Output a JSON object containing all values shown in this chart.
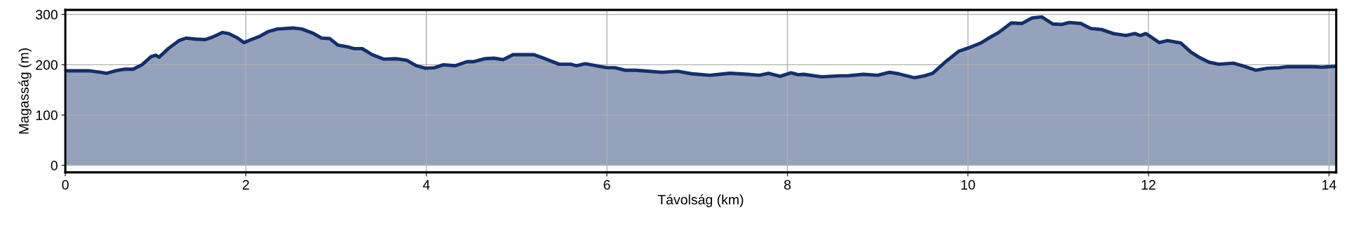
{
  "chart_data": {
    "type": "area",
    "xlabel": "Távolság (km)",
    "ylabel": "Magasság (m)",
    "xlim": [
      0,
      14.08
    ],
    "ylim": [
      -14,
      309
    ],
    "xticks": [
      0,
      2,
      4,
      6,
      8,
      10,
      12,
      14
    ],
    "yticks": [
      0,
      100,
      200,
      300
    ],
    "grid": true,
    "legend": false,
    "series": [
      {
        "color": "#13306b",
        "x": [
          0,
          0.26,
          0.39,
          0.46,
          0.56,
          0.65,
          0.75,
          0.85,
          0.95,
          1.0,
          1.04,
          1.14,
          1.26,
          1.34,
          1.44,
          1.55,
          1.63,
          1.68,
          1.74,
          1.81,
          1.9,
          1.98,
          2.06,
          2.16,
          2.25,
          2.35,
          2.52,
          2.62,
          2.75,
          2.84,
          2.93,
          3.02,
          3.14,
          3.2,
          3.29,
          3.4,
          3.53,
          3.66,
          3.78,
          3.89,
          3.99,
          4.09,
          4.19,
          4.32,
          4.45,
          4.52,
          4.65,
          4.75,
          4.85,
          4.96,
          5.19,
          5.3,
          5.47,
          5.6,
          5.66,
          5.76,
          6.0,
          6.09,
          6.2,
          6.32,
          6.61,
          6.78,
          6.94,
          7.14,
          7.36,
          7.56,
          7.69,
          7.79,
          7.92,
          8.04,
          8.12,
          8.18,
          8.38,
          8.58,
          8.67,
          8.84,
          9.0,
          9.13,
          9.23,
          9.41,
          9.52,
          9.61,
          9.74,
          9.9,
          10.0,
          10.14,
          10.25,
          10.34,
          10.48,
          10.6,
          10.71,
          10.82,
          10.94,
          11.04,
          11.12,
          11.25,
          11.36,
          11.48,
          11.61,
          11.75,
          11.85,
          11.91,
          11.97,
          12.12,
          12.21,
          12.36,
          12.47,
          12.56,
          12.67,
          12.78,
          12.94,
          13.04,
          13.19,
          13.32,
          13.45,
          13.54,
          13.83,
          13.92,
          14.08
        ],
        "values": [
          188,
          188,
          185,
          183,
          188,
          191,
          191,
          200,
          216,
          219,
          215,
          232,
          248,
          253,
          251,
          250,
          255,
          259,
          264,
          262,
          254,
          244,
          250,
          257,
          266,
          271,
          273,
          271,
          262,
          253,
          252,
          239,
          235,
          232,
          232,
          220,
          211,
          212,
          209,
          198,
          193,
          194,
          200,
          198,
          206,
          206,
          212,
          213,
          210,
          220,
          220,
          213,
          201,
          201,
          198,
          202,
          194,
          194,
          189,
          189,
          185,
          187,
          182,
          179,
          183,
          181,
          179,
          183,
          177,
          184,
          180,
          181,
          176,
          178,
          178,
          181,
          179,
          185,
          182,
          174,
          178,
          183,
          204,
          227,
          233,
          243,
          255,
          264,
          283,
          282,
          293,
          295,
          281,
          280,
          284,
          282,
          272,
          270,
          262,
          258,
          262,
          258,
          262,
          244,
          248,
          243,
          225,
          215,
          205,
          201,
          203,
          198,
          189,
          193,
          194,
          196,
          196,
          195,
          197
        ]
      }
    ]
  }
}
